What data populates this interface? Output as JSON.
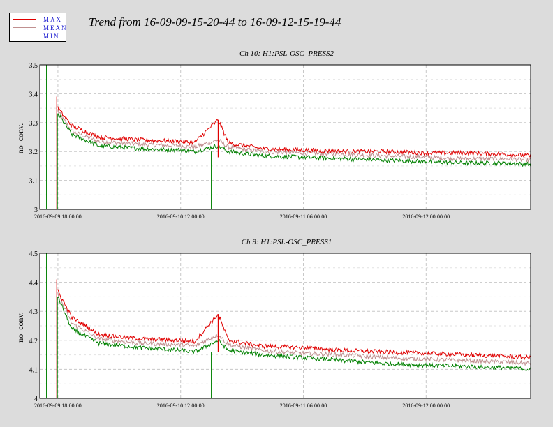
{
  "title": "Trend from 16-09-09-15-20-44 to 16-09-12-15-19-44",
  "legend": [
    {
      "label": "MAX",
      "color": "#e00000"
    },
    {
      "label": "MEAN",
      "color": "#c09090"
    },
    {
      "label": "MIN",
      "color": "#008000"
    }
  ],
  "chart_data": [
    {
      "type": "line",
      "title": "Ch 10: H1:PSL-OSC_PRESS2",
      "ylabel": "no_conv.",
      "xlabel": "",
      "xlim": [
        "2016-09-09 15:20:44",
        "2016-09-12 15:19:44"
      ],
      "ylim": [
        3,
        3.5
      ],
      "yticks": [
        "3",
        "3.1",
        "3.2",
        "3.3",
        "3.4",
        "3.5"
      ],
      "xticks": [
        "2016-09-09 18:00:00",
        "2016-09-10 12:00:00",
        "2016-09-11 06:00:00",
        "2016-09-12 00:00:00"
      ],
      "grid": true,
      "legend_position": "top-left, outside plot",
      "series": [
        {
          "name": "MAX",
          "color": "#e00000",
          "x": [
            "2016-09-09 15:20:44",
            "2016-09-09 18:00:00",
            "2016-09-09 20:00:00",
            "2016-09-10 00:00:00",
            "2016-09-10 06:00:00",
            "2016-09-10 12:00:00",
            "2016-09-10 14:00:00",
            "2016-09-10 17:30:00",
            "2016-09-10 19:00:00",
            "2016-09-11 00:00:00",
            "2016-09-11 06:00:00",
            "2016-09-11 12:00:00",
            "2016-09-11 18:00:00",
            "2016-09-12 00:00:00",
            "2016-09-12 06:00:00",
            "2016-09-12 12:00:00",
            "2016-09-12 15:19:44"
          ],
          "values": [
            null,
            3.35,
            3.29,
            3.25,
            3.24,
            3.235,
            3.23,
            3.31,
            3.23,
            3.21,
            3.205,
            3.2,
            3.2,
            3.195,
            3.195,
            3.19,
            3.185
          ]
        },
        {
          "name": "MEAN",
          "color": "#c09090",
          "x": [
            "2016-09-09 15:20:44",
            "2016-09-09 18:00:00",
            "2016-09-09 20:00:00",
            "2016-09-10 00:00:00",
            "2016-09-10 06:00:00",
            "2016-09-10 12:00:00",
            "2016-09-10 14:00:00",
            "2016-09-10 17:30:00",
            "2016-09-10 19:00:00",
            "2016-09-11 00:00:00",
            "2016-09-11 06:00:00",
            "2016-09-11 12:00:00",
            "2016-09-11 18:00:00",
            "2016-09-12 00:00:00",
            "2016-09-12 06:00:00",
            "2016-09-12 12:00:00",
            "2016-09-12 15:19:44"
          ],
          "values": [
            null,
            3.34,
            3.27,
            3.235,
            3.225,
            3.22,
            3.215,
            3.24,
            3.215,
            3.2,
            3.195,
            3.19,
            3.185,
            3.18,
            3.175,
            3.175,
            3.17
          ]
        },
        {
          "name": "MIN",
          "color": "#008000",
          "x": [
            "2016-09-09 15:20:44",
            "2016-09-09 18:00:00",
            "2016-09-09 20:00:00",
            "2016-09-10 00:00:00",
            "2016-09-10 06:00:00",
            "2016-09-10 12:00:00",
            "2016-09-10 14:00:00",
            "2016-09-10 17:30:00",
            "2016-09-10 19:00:00",
            "2016-09-11 00:00:00",
            "2016-09-11 06:00:00",
            "2016-09-11 12:00:00",
            "2016-09-11 18:00:00",
            "2016-09-12 00:00:00",
            "2016-09-12 06:00:00",
            "2016-09-12 12:00:00",
            "2016-09-12 15:19:44"
          ],
          "values": [
            null,
            3.33,
            3.26,
            3.22,
            3.21,
            3.205,
            3.2,
            3.22,
            3.2,
            3.185,
            3.18,
            3.175,
            3.17,
            3.165,
            3.16,
            3.16,
            3.155
          ]
        }
      ]
    },
    {
      "type": "line",
      "title": "Ch 9: H1:PSL-OSC_PRESS1",
      "ylabel": "no_conv.",
      "xlabel": "",
      "xlim": [
        "2016-09-09 15:20:44",
        "2016-09-12 15:19:44"
      ],
      "ylim": [
        4,
        4.5
      ],
      "yticks": [
        "4",
        "4.1",
        "4.2",
        "4.3",
        "4.4",
        "4.5"
      ],
      "xticks": [
        "2016-09-09 18:00:00",
        "2016-09-10 12:00:00",
        "2016-09-11 06:00:00",
        "2016-09-12 00:00:00"
      ],
      "grid": true,
      "legend_position": "top-left, outside plot",
      "series": [
        {
          "name": "MAX",
          "color": "#e00000",
          "x": [
            "2016-09-09 15:20:44",
            "2016-09-09 18:00:00",
            "2016-09-09 20:00:00",
            "2016-09-10 00:00:00",
            "2016-09-10 06:00:00",
            "2016-09-10 12:00:00",
            "2016-09-10 14:00:00",
            "2016-09-10 17:30:00",
            "2016-09-10 19:00:00",
            "2016-09-11 00:00:00",
            "2016-09-11 06:00:00",
            "2016-09-11 12:00:00",
            "2016-09-11 18:00:00",
            "2016-09-12 00:00:00",
            "2016-09-12 06:00:00",
            "2016-09-12 12:00:00",
            "2016-09-12 15:19:44"
          ],
          "values": [
            null,
            4.37,
            4.28,
            4.22,
            4.205,
            4.2,
            4.195,
            4.29,
            4.2,
            4.18,
            4.175,
            4.165,
            4.16,
            4.155,
            4.15,
            4.145,
            4.14
          ]
        },
        {
          "name": "MEAN",
          "color": "#c09090",
          "x": [
            "2016-09-09 15:20:44",
            "2016-09-09 18:00:00",
            "2016-09-09 20:00:00",
            "2016-09-10 00:00:00",
            "2016-09-10 06:00:00",
            "2016-09-10 12:00:00",
            "2016-09-10 14:00:00",
            "2016-09-10 17:30:00",
            "2016-09-10 19:00:00",
            "2016-09-11 00:00:00",
            "2016-09-11 06:00:00",
            "2016-09-11 12:00:00",
            "2016-09-11 18:00:00",
            "2016-09-12 00:00:00",
            "2016-09-12 06:00:00",
            "2016-09-12 12:00:00",
            "2016-09-12 15:19:44"
          ],
          "values": [
            null,
            4.36,
            4.26,
            4.205,
            4.19,
            4.185,
            4.18,
            4.22,
            4.185,
            4.165,
            4.155,
            4.15,
            4.14,
            4.135,
            4.13,
            4.125,
            4.12
          ]
        },
        {
          "name": "MIN",
          "color": "#008000",
          "x": [
            "2016-09-09 15:20:44",
            "2016-09-09 18:00:00",
            "2016-09-09 20:00:00",
            "2016-09-10 00:00:00",
            "2016-09-10 06:00:00",
            "2016-09-10 12:00:00",
            "2016-09-10 14:00:00",
            "2016-09-10 17:30:00",
            "2016-09-10 19:00:00",
            "2016-09-11 00:00:00",
            "2016-09-11 06:00:00",
            "2016-09-11 12:00:00",
            "2016-09-11 18:00:00",
            "2016-09-12 00:00:00",
            "2016-09-12 06:00:00",
            "2016-09-12 12:00:00",
            "2016-09-12 15:19:44"
          ],
          "values": [
            null,
            4.35,
            4.24,
            4.19,
            4.175,
            4.165,
            4.16,
            4.2,
            4.165,
            4.15,
            4.14,
            4.13,
            4.12,
            4.115,
            4.11,
            4.105,
            4.1
          ]
        }
      ]
    }
  ]
}
